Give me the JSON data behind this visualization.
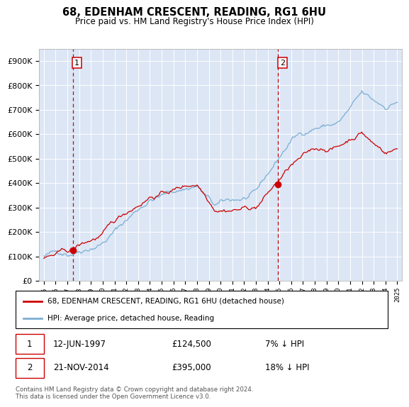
{
  "title": "68, EDENHAM CRESCENT, READING, RG1 6HU",
  "subtitle": "Price paid vs. HM Land Registry's House Price Index (HPI)",
  "plot_bg_color": "#dce6f5",
  "grid_color": "#ffffff",
  "transaction1": {
    "date": 1997.45,
    "price": 124500,
    "label": "12-JUN-1997",
    "price_str": "£124,500",
    "pct": "7% ↓ HPI"
  },
  "transaction2": {
    "date": 2014.89,
    "price": 395000,
    "label": "21-NOV-2014",
    "price_str": "£395,000",
    "pct": "18% ↓ HPI"
  },
  "legend_line1": "68, EDENHAM CRESCENT, READING, RG1 6HU (detached house)",
  "legend_line2": "HPI: Average price, detached house, Reading",
  "footnote": "Contains HM Land Registry data © Crown copyright and database right 2024.\nThis data is licensed under the Open Government Licence v3.0.",
  "hpi_color": "#7bafd4",
  "price_color": "#cc0000",
  "dashed_color": "#cc0000",
  "ylim": [
    0,
    950000
  ],
  "yticks": [
    0,
    100000,
    200000,
    300000,
    400000,
    500000,
    600000,
    700000,
    800000,
    900000
  ],
  "xlim_start": 1994.6,
  "xlim_end": 2025.4
}
